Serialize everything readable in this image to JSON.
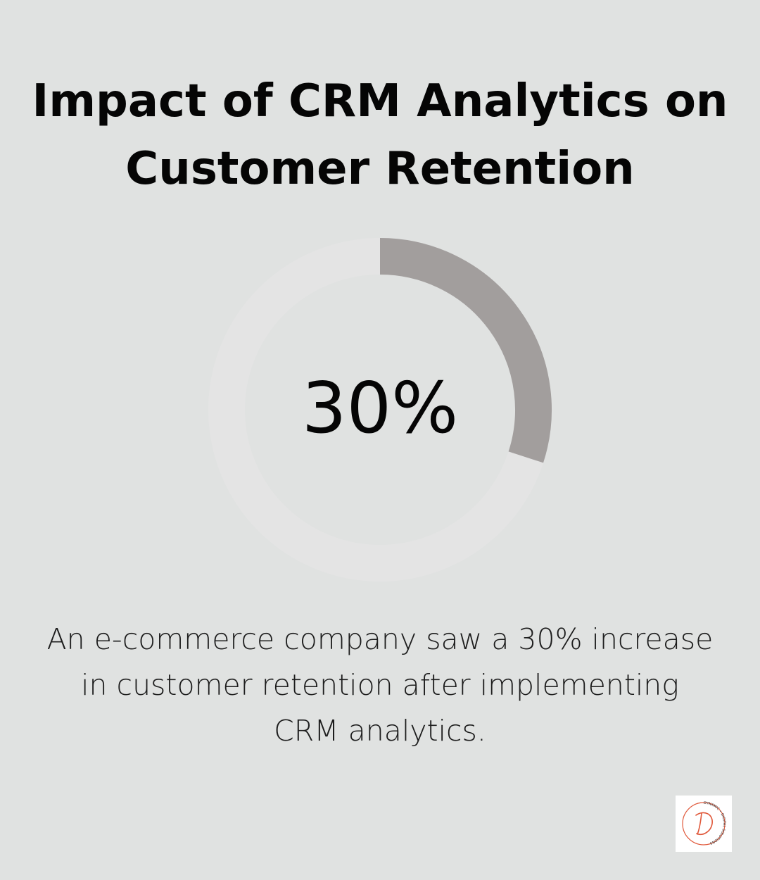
{
  "title": {
    "line1": "Impact of CRM Analytics on",
    "line2": "Customer Retention"
  },
  "chart_data": {
    "type": "pie",
    "values": [
      30,
      70
    ],
    "value_label": "30%",
    "colors": {
      "filled": "#a29e9d",
      "track": "#e4e4e4",
      "background": "#e0e2e1"
    }
  },
  "caption": {
    "line1": "An e-commerce company saw a 30% increase",
    "line2": "in customer retention after implementing",
    "line3": "CRM analytics."
  },
  "logo": {
    "icon": "dynamic-digital-solutions-logo",
    "text": "DYNAMIC • DIGITAL SOLUTIONS",
    "accent": "#e0583a"
  }
}
